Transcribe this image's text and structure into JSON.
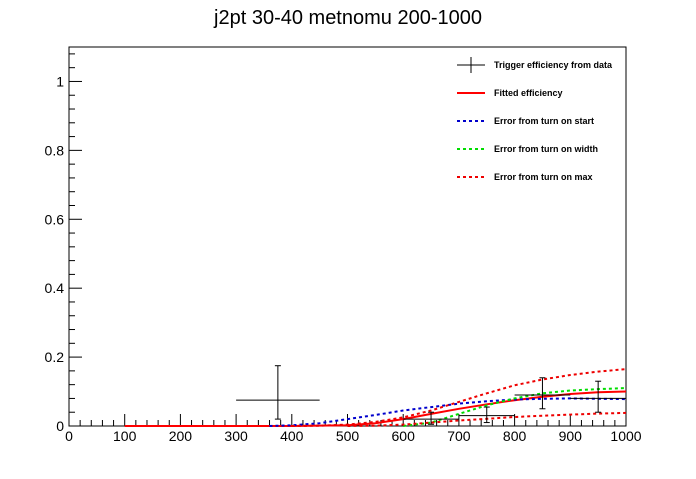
{
  "chart_data": {
    "type": "line",
    "title": "j2pt 30-40 metnomu 200-1000",
    "xlabel": "",
    "ylabel": "",
    "xlim": [
      0,
      1000
    ],
    "ylim": [
      0,
      1.1
    ],
    "x_ticks": [
      0,
      100,
      200,
      300,
      400,
      500,
      600,
      700,
      800,
      900,
      1000
    ],
    "y_ticks": [
      0,
      0.2,
      0.4,
      0.6,
      0.8,
      1
    ],
    "grid": false,
    "legend_placement": "top-right",
    "data_points": {
      "name": "Trigger efficiency from data",
      "color": "#000000",
      "points": [
        {
          "x": 375,
          "y": 0.075,
          "xerr": 75,
          "yerr_low": 0.055,
          "yerr_high": 0.1
        },
        {
          "x": 650,
          "y": 0.02,
          "xerr": 50,
          "yerr_low": 0.015,
          "yerr_high": 0.02
        },
        {
          "x": 750,
          "y": 0.03,
          "xerr": 50,
          "yerr_low": 0.02,
          "yerr_high": 0.025
        },
        {
          "x": 850,
          "y": 0.09,
          "xerr": 50,
          "yerr_low": 0.04,
          "yerr_high": 0.05
        },
        {
          "x": 950,
          "y": 0.08,
          "xerr": 50,
          "yerr_low": 0.04,
          "yerr_high": 0.05
        }
      ]
    },
    "series": [
      {
        "name": "Fitted efficiency",
        "color": "#ff0000",
        "style": "solid",
        "x": [
          100,
          200,
          300,
          400,
          500,
          550,
          600,
          650,
          700,
          750,
          800,
          850,
          900,
          950,
          1000
        ],
        "y": [
          0,
          0,
          0,
          0,
          0.002,
          0.008,
          0.02,
          0.035,
          0.05,
          0.063,
          0.075,
          0.085,
          0.093,
          0.098,
          0.1
        ]
      },
      {
        "name": "Error from turn on start",
        "color": "#0000cc",
        "style": "dotted",
        "x": [
          360,
          400,
          450,
          500,
          550,
          600,
          650,
          700,
          750,
          800,
          850,
          900,
          950,
          1000
        ],
        "y": [
          0,
          0.002,
          0.008,
          0.02,
          0.032,
          0.045,
          0.055,
          0.065,
          0.072,
          0.077,
          0.079,
          0.08,
          0.079,
          0.078
        ]
      },
      {
        "name": "Error from turn on width",
        "color": "#00dd00",
        "style": "dotted",
        "x": [
          600,
          650,
          700,
          750,
          800,
          850,
          900,
          950,
          1000
        ],
        "y": [
          0,
          0.01,
          0.035,
          0.06,
          0.08,
          0.095,
          0.103,
          0.107,
          0.11
        ]
      },
      {
        "name": "Error from turn on max",
        "color": "#ee0000",
        "style": "dotted",
        "x": [
          400,
          450,
          500,
          550,
          600,
          650,
          700,
          750,
          800,
          850,
          900,
          950,
          1000
        ],
        "y": [
          0,
          0.001,
          0.004,
          0.012,
          0.025,
          0.045,
          0.07,
          0.095,
          0.118,
          0.135,
          0.148,
          0.158,
          0.165
        ]
      },
      {
        "name": "",
        "color": "#ee0000",
        "style": "dotted",
        "x": [
          500,
          550,
          600,
          650,
          700,
          750,
          800,
          850,
          900,
          950,
          1000
        ],
        "y": [
          0,
          0.001,
          0.004,
          0.01,
          0.016,
          0.021,
          0.026,
          0.03,
          0.033,
          0.036,
          0.038
        ]
      }
    ]
  }
}
